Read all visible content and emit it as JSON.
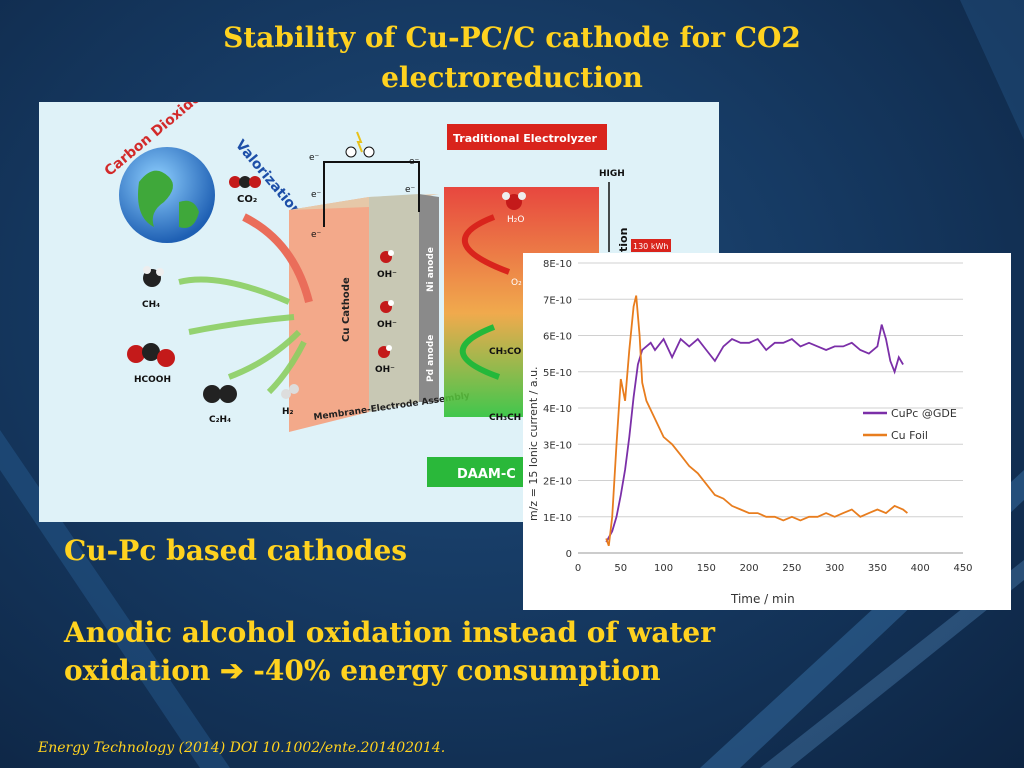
{
  "slide": {
    "title_line1": "Stability of Cu-PC/C cathode for CO2",
    "title_line2": "electroreduction",
    "bullet1": "Cu-Pc based cathodes",
    "bullet2_line1": "Anodic alcohol oxidation instead of water",
    "bullet2_line2": "oxidation ➔ -40% energy consumption",
    "citation": "Energy Technology (2014) DOI 10.1002/ente.201402014."
  },
  "diagram": {
    "ring_left": "Carbon Dioxide",
    "ring_right": "Valorization",
    "co2": "CO₂",
    "electron": "e⁻",
    "traditional_electrolyzer": "Traditional Electrolyzer",
    "high": "HIGH",
    "kwh": "130 kWh",
    "ch4": "CH₄",
    "hcooh": "HCOOH",
    "c2h4": "C₂H₄",
    "h2": "H₂",
    "h2o": "H₂O",
    "o2": "O₂",
    "oh": "OH⁻",
    "cu_cathode": "Cu Cathode",
    "ni_anode": "Ni anode",
    "pd_anode": "Pd anode",
    "mea": "Membrane-Electrode Assembly",
    "ch3co": "CH₃CO",
    "ch3ch": "CH₃CH",
    "daam": "DAAM-C",
    "partial_vertical": "tion"
  },
  "chart_data": {
    "type": "line",
    "title": "",
    "xlabel": "Time / min",
    "ylabel": "m/z = 15  Ionic current / a.u.",
    "xlim": [
      0,
      450
    ],
    "ylim": [
      0,
      8e-10
    ],
    "x_ticks": [
      "0",
      "50",
      "100",
      "150",
      "200",
      "250",
      "300",
      "350",
      "400",
      "450"
    ],
    "y_ticks": [
      "0",
      "1E-10",
      "2E-10",
      "3E-10",
      "4E-10",
      "5E-10",
      "6E-10",
      "7E-10",
      "8E-10"
    ],
    "grid": true,
    "legend_position": "right",
    "series": [
      {
        "name": "CuPc @GDE",
        "color": "#7b2fa8",
        "x": [
          33,
          40,
          45,
          50,
          55,
          60,
          65,
          70,
          75,
          80,
          85,
          90,
          100,
          110,
          120,
          130,
          140,
          150,
          160,
          170,
          180,
          190,
          200,
          210,
          220,
          230,
          240,
          250,
          260,
          270,
          280,
          290,
          300,
          310,
          320,
          330,
          340,
          350,
          355,
          360,
          365,
          370,
          375,
          380
        ],
        "y": [
          3e-11,
          6e-11,
          1e-10,
          1.6e-10,
          2.3e-10,
          3.2e-10,
          4.3e-10,
          5.2e-10,
          5.6e-10,
          5.7e-10,
          5.8e-10,
          5.6e-10,
          5.9e-10,
          5.4e-10,
          5.9e-10,
          5.7e-10,
          5.9e-10,
          5.6e-10,
          5.3e-10,
          5.7e-10,
          5.9e-10,
          5.8e-10,
          5.8e-10,
          5.9e-10,
          5.6e-10,
          5.8e-10,
          5.8e-10,
          5.9e-10,
          5.7e-10,
          5.8e-10,
          5.7e-10,
          5.6e-10,
          5.7e-10,
          5.7e-10,
          5.8e-10,
          5.6e-10,
          5.5e-10,
          5.7e-10,
          6.3e-10,
          5.9e-10,
          5.3e-10,
          5e-10,
          5.4e-10,
          5.2e-10
        ]
      },
      {
        "name": "Cu Foil",
        "color": "#e87d1e",
        "x": [
          33,
          36,
          40,
          45,
          50,
          55,
          60,
          65,
          68,
          72,
          75,
          80,
          90,
          100,
          110,
          120,
          130,
          140,
          150,
          160,
          170,
          180,
          190,
          200,
          210,
          220,
          230,
          240,
          250,
          260,
          270,
          280,
          290,
          300,
          310,
          320,
          330,
          340,
          350,
          360,
          370,
          380,
          385
        ],
        "y": [
          4e-11,
          2e-11,
          1e-10,
          3e-10,
          4.8e-10,
          4.2e-10,
          5.6e-10,
          6.8e-10,
          7.1e-10,
          6e-10,
          4.7e-10,
          4.2e-10,
          3.7e-10,
          3.2e-10,
          3e-10,
          2.7e-10,
          2.4e-10,
          2.2e-10,
          1.9e-10,
          1.6e-10,
          1.5e-10,
          1.3e-10,
          1.2e-10,
          1.1e-10,
          1.1e-10,
          1e-10,
          1e-10,
          9e-11,
          1e-10,
          9e-11,
          1e-10,
          1e-10,
          1.1e-10,
          1e-10,
          1.1e-10,
          1.2e-10,
          1e-10,
          1.1e-10,
          1.2e-10,
          1.1e-10,
          1.3e-10,
          1.2e-10,
          1.1e-10
        ]
      }
    ]
  }
}
